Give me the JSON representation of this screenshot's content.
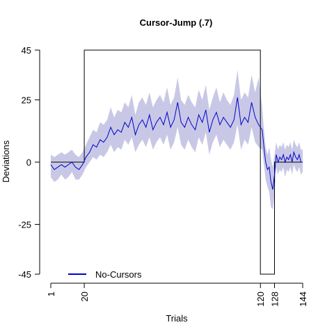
{
  "chart_data": {
    "type": "line",
    "title": "Cursor-Jump (.7)",
    "xlabel": "Trials",
    "ylabel": "Deviations",
    "xlim": [
      1,
      144
    ],
    "ylim": [
      -45,
      45
    ],
    "x_ticks": [
      1,
      20,
      120,
      128,
      144
    ],
    "y_ticks": [
      45,
      25,
      0,
      -25,
      -45
    ],
    "legend": {
      "position": "bottom-left",
      "entries": [
        "No-Cursors"
      ]
    },
    "grid": false,
    "colors": {
      "line": "#0000cc",
      "band": "#c8c8e6",
      "schedule": "#000000"
    },
    "schedule": {
      "x": [
        1,
        20,
        20,
        120,
        120,
        128,
        128,
        144
      ],
      "y": [
        0,
        0,
        45,
        45,
        -45,
        -45,
        0,
        0
      ]
    },
    "series": [
      {
        "name": "No-Cursors",
        "x": [
          1,
          3,
          5,
          7,
          9,
          11,
          13,
          15,
          17,
          19,
          21,
          23,
          25,
          27,
          29,
          31,
          33,
          35,
          37,
          39,
          41,
          43,
          45,
          47,
          49,
          51,
          53,
          55,
          57,
          59,
          61,
          63,
          65,
          67,
          69,
          71,
          73,
          75,
          77,
          79,
          81,
          83,
          85,
          87,
          89,
          91,
          93,
          95,
          97,
          99,
          101,
          103,
          105,
          107,
          109,
          111,
          113,
          115,
          117,
          119,
          121,
          122,
          123,
          124,
          125,
          126,
          127,
          128,
          129,
          130,
          131,
          132,
          133,
          134,
          135,
          136,
          137,
          138,
          139,
          140,
          141,
          142,
          143,
          144
        ],
        "values": [
          -1,
          -3,
          -2,
          -1,
          -2,
          -1,
          0,
          -2,
          -3,
          -1,
          2,
          4,
          7,
          6,
          9,
          8,
          10,
          14,
          11,
          13,
          12,
          16,
          14,
          18,
          11,
          15,
          17,
          14,
          19,
          13,
          16,
          18,
          15,
          20,
          14,
          17,
          24,
          16,
          14,
          18,
          15,
          13,
          19,
          16,
          21,
          12,
          17,
          20,
          15,
          18,
          16,
          14,
          17,
          26,
          15,
          18,
          16,
          24,
          18,
          15,
          13,
          6,
          0,
          -3,
          -2,
          -8,
          -11,
          -5,
          3,
          0,
          2,
          1,
          3,
          0,
          2,
          1,
          3,
          0,
          4,
          2,
          1,
          3,
          0,
          0
        ],
        "lower": [
          -6,
          -8,
          -7,
          -5,
          -7,
          -6,
          -4,
          -7,
          -7,
          -5,
          -2,
          0,
          2,
          1,
          3,
          2,
          4,
          7,
          4,
          6,
          5,
          9,
          7,
          10,
          4,
          7,
          9,
          6,
          10,
          5,
          8,
          10,
          7,
          11,
          5,
          8,
          14,
          7,
          5,
          9,
          6,
          4,
          10,
          7,
          12,
          3,
          8,
          11,
          6,
          9,
          7,
          5,
          8,
          15,
          5,
          9,
          7,
          14,
          8,
          6,
          5,
          -1,
          -7,
          -10,
          -12,
          -18,
          -19,
          -13,
          -2,
          -5,
          -3,
          -4,
          -2,
          -6,
          -3,
          -4,
          -2,
          -5,
          -1,
          -3,
          -4,
          -2,
          -5,
          -4
        ],
        "upper": [
          3,
          2,
          3,
          4,
          3,
          4,
          5,
          3,
          2,
          4,
          7,
          10,
          13,
          12,
          16,
          15,
          17,
          22,
          18,
          21,
          20,
          24,
          22,
          27,
          19,
          24,
          26,
          23,
          28,
          22,
          25,
          27,
          24,
          30,
          23,
          26,
          34,
          25,
          23,
          27,
          24,
          22,
          29,
          25,
          31,
          21,
          26,
          30,
          24,
          28,
          25,
          23,
          27,
          37,
          25,
          28,
          26,
          35,
          28,
          34,
          22,
          13,
          6,
          3,
          6,
          1,
          -2,
          3,
          8,
          5,
          7,
          6,
          8,
          5,
          7,
          6,
          8,
          5,
          9,
          7,
          6,
          8,
          5,
          5
        ]
      }
    ]
  }
}
